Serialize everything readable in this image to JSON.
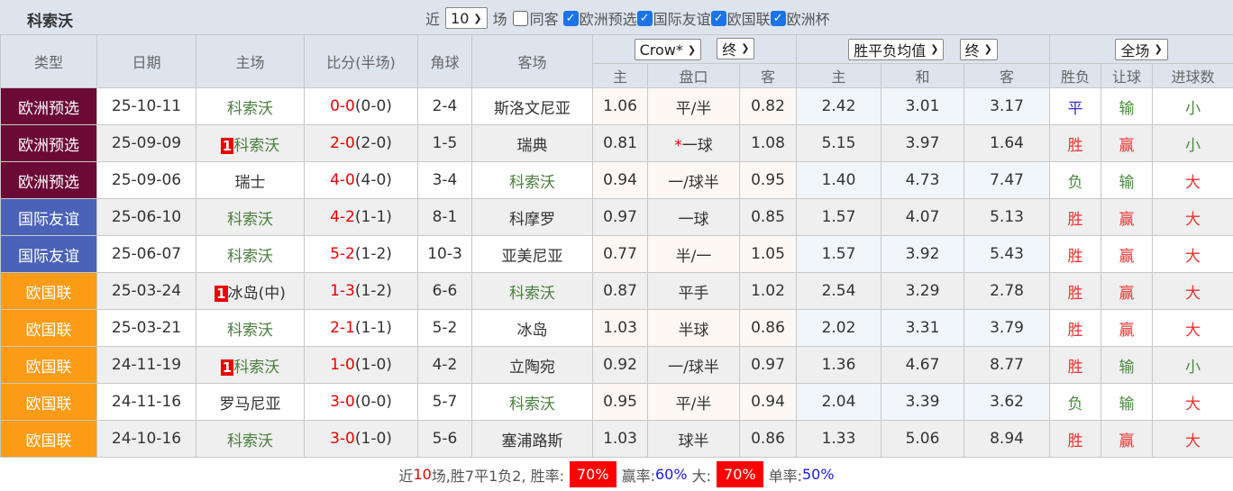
{
  "header": {
    "title": "科索沃",
    "recent_prefix": "近",
    "recent_value": "10",
    "recent_suffix": "场",
    "same_home_label": "同客",
    "same_home_checked": false,
    "competitions": [
      {
        "label": "欧洲预选",
        "checked": true
      },
      {
        "label": "国际友谊",
        "checked": true
      },
      {
        "label": "欧国联",
        "checked": true
      },
      {
        "label": "欧洲杯",
        "checked": true
      }
    ]
  },
  "columns": {
    "type": "类型",
    "date": "日期",
    "home": "主场",
    "score": "比分(半场)",
    "corner": "角球",
    "away": "客场",
    "asian_company": "Crow*",
    "asian_stage": "终",
    "euro_company": "胜平负均值",
    "euro_stage": "终",
    "result_scope": "全场",
    "asian_sub": [
      "主",
      "盘口",
      "客"
    ],
    "euro_sub": [
      "主",
      "和",
      "客"
    ],
    "result_sub": [
      "胜负",
      "让球",
      "进球数"
    ]
  },
  "colors": {
    "欧洲预选": "#6b0a35",
    "国际友谊": "#4a63b8",
    "欧国联": "#fa9c16"
  },
  "rows": [
    {
      "type": "欧洲预选",
      "date": "25-10-11",
      "home_badge": "",
      "home": "科索沃",
      "score": "0-0",
      "half": "(0-0)",
      "corner": "2-4",
      "away": "斯洛文尼亚",
      "a_home": "1.06",
      "a_line": "平/半",
      "a_star": "",
      "a_away": "0.82",
      "e_home": "2.42",
      "e_draw": "3.01",
      "e_away": "3.17",
      "wdl": "平",
      "handicap": "输",
      "goals": "小"
    },
    {
      "type": "欧洲预选",
      "date": "25-09-09",
      "home_badge": "1",
      "home": "科索沃",
      "score": "2-0",
      "half": "(2-0)",
      "corner": "1-5",
      "away": "瑞典",
      "a_home": "0.81",
      "a_line": "一球",
      "a_star": "*",
      "a_away": "1.08",
      "e_home": "5.15",
      "e_draw": "3.97",
      "e_away": "1.64",
      "wdl": "胜",
      "handicap": "赢",
      "goals": "小"
    },
    {
      "type": "欧洲预选",
      "date": "25-09-06",
      "home_badge": "",
      "home": "瑞士",
      "score": "4-0",
      "half": "(4-0)",
      "corner": "3-4",
      "away": "科索沃",
      "a_home": "0.94",
      "a_line": "一/球半",
      "a_star": "",
      "a_away": "0.95",
      "e_home": "1.40",
      "e_draw": "4.73",
      "e_away": "7.47",
      "wdl": "负",
      "handicap": "输",
      "goals": "大"
    },
    {
      "type": "国际友谊",
      "date": "25-06-10",
      "home_badge": "",
      "home": "科索沃",
      "score": "4-2",
      "half": "(1-1)",
      "corner": "8-1",
      "away": "科摩罗",
      "a_home": "0.97",
      "a_line": "一球",
      "a_star": "",
      "a_away": "0.85",
      "e_home": "1.57",
      "e_draw": "4.07",
      "e_away": "5.13",
      "wdl": "胜",
      "handicap": "赢",
      "goals": "大"
    },
    {
      "type": "国际友谊",
      "date": "25-06-07",
      "home_badge": "",
      "home": "科索沃",
      "score": "5-2",
      "half": "(1-2)",
      "corner": "10-3",
      "away": "亚美尼亚",
      "a_home": "0.77",
      "a_line": "半/一",
      "a_star": "",
      "a_away": "1.05",
      "e_home": "1.57",
      "e_draw": "3.92",
      "e_away": "5.43",
      "wdl": "胜",
      "handicap": "赢",
      "goals": "大"
    },
    {
      "type": "欧国联",
      "date": "25-03-24",
      "home_badge": "1",
      "home": "冰岛(中)",
      "score": "1-3",
      "half": "(1-2)",
      "corner": "6-6",
      "away": "科索沃",
      "a_home": "0.87",
      "a_line": "平手",
      "a_star": "",
      "a_away": "1.02",
      "e_home": "2.54",
      "e_draw": "3.29",
      "e_away": "2.78",
      "wdl": "胜",
      "handicap": "赢",
      "goals": "大"
    },
    {
      "type": "欧国联",
      "date": "25-03-21",
      "home_badge": "",
      "home": "科索沃",
      "score": "2-1",
      "half": "(1-1)",
      "corner": "5-2",
      "away": "冰岛",
      "a_home": "1.03",
      "a_line": "半球",
      "a_star": "",
      "a_away": "0.86",
      "e_home": "2.02",
      "e_draw": "3.31",
      "e_away": "3.79",
      "wdl": "胜",
      "handicap": "赢",
      "goals": "大"
    },
    {
      "type": "欧国联",
      "date": "24-11-19",
      "home_badge": "1",
      "home": "科索沃",
      "score": "1-0",
      "half": "(1-0)",
      "corner": "4-2",
      "away": "立陶宛",
      "a_home": "0.92",
      "a_line": "一/球半",
      "a_star": "",
      "a_away": "0.97",
      "e_home": "1.36",
      "e_draw": "4.67",
      "e_away": "8.77",
      "wdl": "胜",
      "handicap": "输",
      "goals": "小"
    },
    {
      "type": "欧国联",
      "date": "24-11-16",
      "home_badge": "",
      "home": "罗马尼亚",
      "score": "3-0",
      "half": "(0-0)",
      "corner": "5-7",
      "away": "科索沃",
      "a_home": "0.95",
      "a_line": "平/半",
      "a_star": "",
      "a_away": "0.94",
      "e_home": "2.04",
      "e_draw": "3.39",
      "e_away": "3.62",
      "wdl": "负",
      "handicap": "输",
      "goals": "大"
    },
    {
      "type": "欧国联",
      "date": "24-10-16",
      "home_badge": "",
      "home": "科索沃",
      "score": "3-0",
      "half": "(1-0)",
      "corner": "5-6",
      "away": "塞浦路斯",
      "a_home": "1.03",
      "a_line": "球半",
      "a_star": "",
      "a_away": "0.86",
      "e_home": "1.33",
      "e_draw": "5.06",
      "e_away": "8.94",
      "wdl": "胜",
      "handicap": "赢",
      "goals": "大"
    }
  ],
  "footer": {
    "p1": "近",
    "count": "10",
    "p2": "场,胜7平1负2, 胜率:",
    "win_rate": "70%",
    "p3": "赢率:",
    "cover_rate": "60%",
    "p4": "大:",
    "over_rate": "70%",
    "p5": "单率:",
    "odd_rate": "50%"
  }
}
